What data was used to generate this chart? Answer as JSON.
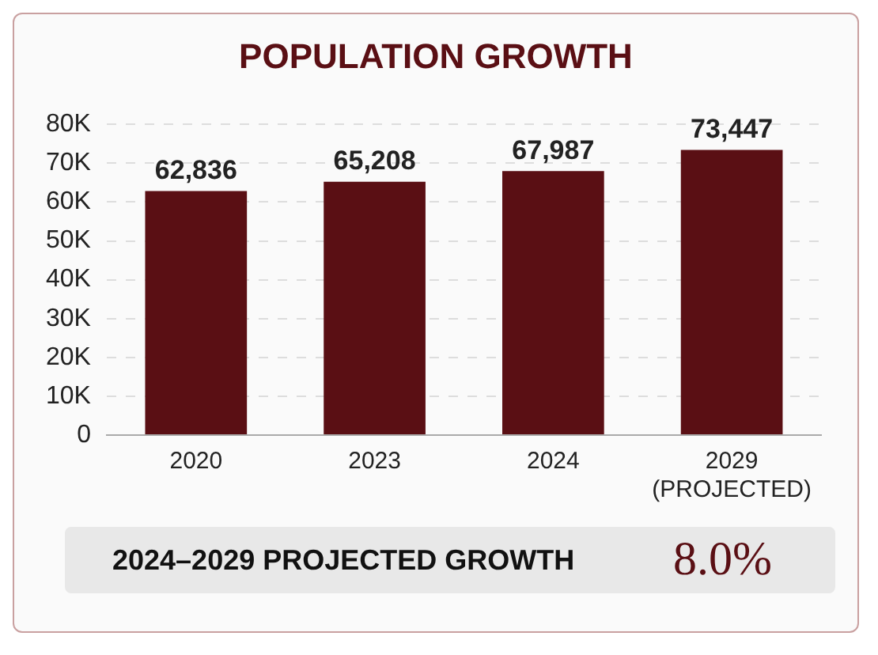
{
  "chart_data": {
    "type": "bar",
    "title": "POPULATION GROWTH",
    "categories": [
      "2020",
      "2023",
      "2024",
      "2029\n(PROJECTED)"
    ],
    "values": [
      62836,
      65208,
      67987,
      73447
    ],
    "color": "#5a0f14",
    "ylim": [
      0,
      80000
    ],
    "yticks": [
      {
        "value": 0,
        "label": "0"
      },
      {
        "value": 10000,
        "label": "10K"
      },
      {
        "value": 20000,
        "label": "20K"
      },
      {
        "value": 30000,
        "label": "30K"
      },
      {
        "value": 40000,
        "label": "40K"
      },
      {
        "value": 50000,
        "label": "50K"
      },
      {
        "value": 60000,
        "label": "60K"
      },
      {
        "value": 70000,
        "label": "70K"
      },
      {
        "value": 80000,
        "label": "80K"
      }
    ],
    "grid": "y",
    "value_labels": [
      "62,836",
      "65,208",
      "67,987",
      "73,447"
    ],
    "annotations": [
      "2024–2029 PROJECTED GROWTH",
      "8.0%"
    ]
  }
}
